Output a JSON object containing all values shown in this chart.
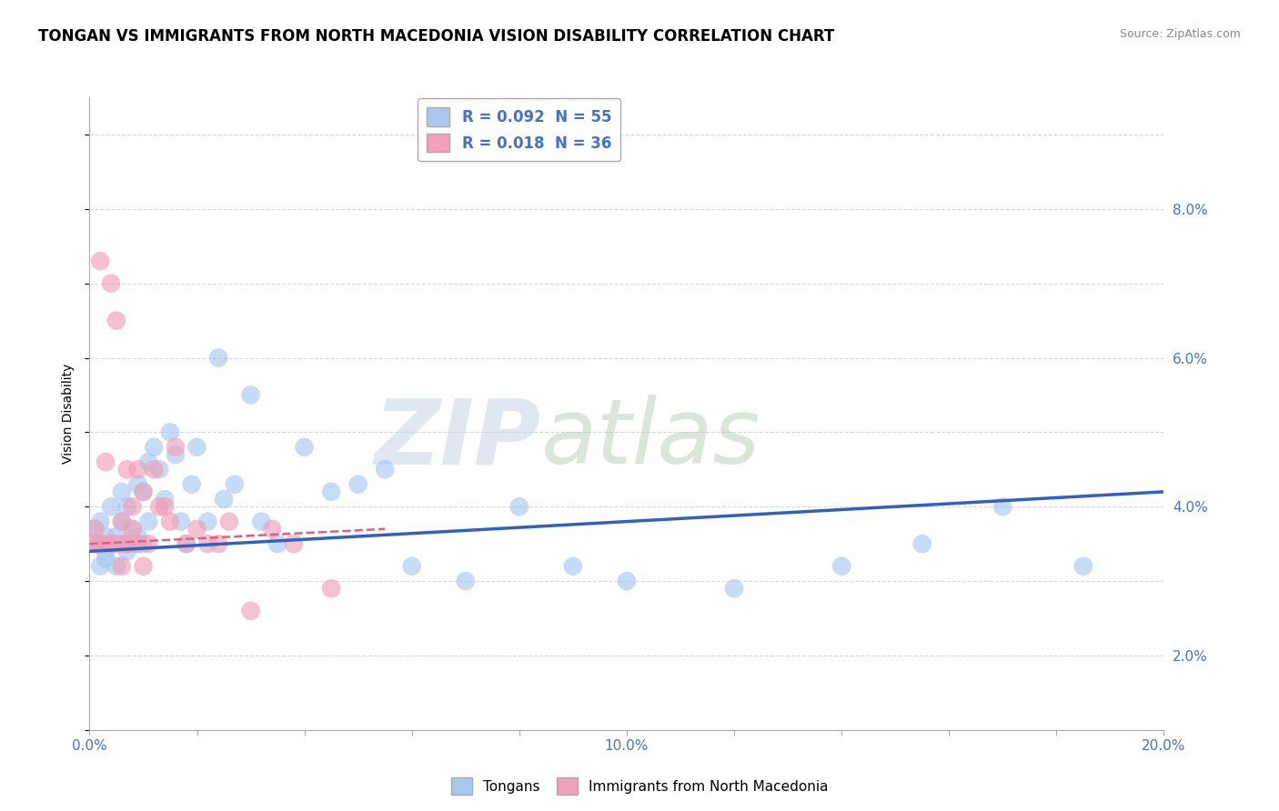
{
  "title": "TONGAN VS IMMIGRANTS FROM NORTH MACEDONIA VISION DISABILITY CORRELATION CHART",
  "source": "Source: ZipAtlas.com",
  "ylabel": "Vision Disability",
  "xlim": [
    0.0,
    0.2
  ],
  "ylim": [
    0.0,
    0.085
  ],
  "xticks": [
    0.0,
    0.02,
    0.04,
    0.06,
    0.08,
    0.1,
    0.12,
    0.14,
    0.16,
    0.18,
    0.2
  ],
  "xticklabels": [
    "0.0%",
    "",
    "",
    "",
    "",
    "10.0%",
    "",
    "",
    "",
    "",
    "20.0%"
  ],
  "yticks": [
    0.0,
    0.01,
    0.02,
    0.03,
    0.04,
    0.05,
    0.06,
    0.07,
    0.08
  ],
  "yticklabels": [
    "",
    "2.0%",
    "",
    "4.0%",
    "",
    "6.0%",
    "",
    "8.0%",
    ""
  ],
  "watermark_zip": "ZIP",
  "watermark_atlas": "atlas",
  "legend_entries": [
    {
      "label": "R = 0.092  N = 55",
      "color": "#a8c8f0"
    },
    {
      "label": "R = 0.018  N = 36",
      "color": "#f0a0b8"
    }
  ],
  "legend_labels_bottom": [
    "Tongans",
    "Immigrants from North Macedonia"
  ],
  "tongan_color": "#a8c8f0",
  "macedonia_color": "#f0a0b8",
  "tongan_line_color": "#3060c0",
  "macedonia_line_color": "#e06080",
  "tongan_x": [
    0.001,
    0.001,
    0.002,
    0.002,
    0.002,
    0.003,
    0.003,
    0.003,
    0.004,
    0.004,
    0.005,
    0.005,
    0.006,
    0.006,
    0.006,
    0.007,
    0.007,
    0.008,
    0.008,
    0.009,
    0.009,
    0.01,
    0.01,
    0.011,
    0.011,
    0.012,
    0.013,
    0.014,
    0.015,
    0.016,
    0.017,
    0.018,
    0.019,
    0.02,
    0.022,
    0.024,
    0.025,
    0.027,
    0.03,
    0.032,
    0.035,
    0.04,
    0.045,
    0.05,
    0.055,
    0.06,
    0.07,
    0.08,
    0.09,
    0.1,
    0.12,
    0.14,
    0.155,
    0.17,
    0.185
  ],
  "tongan_y": [
    0.027,
    0.025,
    0.025,
    0.028,
    0.022,
    0.026,
    0.023,
    0.024,
    0.025,
    0.03,
    0.026,
    0.022,
    0.025,
    0.028,
    0.032,
    0.024,
    0.03,
    0.025,
    0.027,
    0.026,
    0.033,
    0.025,
    0.032,
    0.028,
    0.036,
    0.038,
    0.035,
    0.031,
    0.04,
    0.037,
    0.028,
    0.025,
    0.033,
    0.038,
    0.028,
    0.05,
    0.031,
    0.033,
    0.045,
    0.028,
    0.025,
    0.038,
    0.032,
    0.033,
    0.035,
    0.022,
    0.02,
    0.03,
    0.022,
    0.02,
    0.019,
    0.022,
    0.025,
    0.03,
    0.022
  ],
  "macedonia_x": [
    0.001,
    0.001,
    0.002,
    0.002,
    0.003,
    0.003,
    0.004,
    0.004,
    0.005,
    0.005,
    0.006,
    0.006,
    0.007,
    0.007,
    0.007,
    0.008,
    0.008,
    0.009,
    0.009,
    0.01,
    0.01,
    0.011,
    0.012,
    0.013,
    0.014,
    0.015,
    0.016,
    0.018,
    0.02,
    0.022,
    0.024,
    0.026,
    0.03,
    0.034,
    0.038,
    0.045
  ],
  "macedonia_y": [
    0.027,
    0.025,
    0.063,
    0.025,
    0.025,
    0.036,
    0.025,
    0.06,
    0.025,
    0.055,
    0.022,
    0.028,
    0.025,
    0.035,
    0.025,
    0.027,
    0.03,
    0.025,
    0.035,
    0.022,
    0.032,
    0.025,
    0.035,
    0.03,
    0.03,
    0.028,
    0.038,
    0.025,
    0.027,
    0.025,
    0.025,
    0.028,
    0.016,
    0.027,
    0.025,
    0.019
  ],
  "tongan_trend_x": [
    0.0,
    0.2
  ],
  "tongan_trend_y": [
    0.024,
    0.032
  ],
  "mac_trend_x": [
    0.0,
    0.055
  ],
  "mac_trend_y": [
    0.025,
    0.027
  ],
  "grid_color": "#d8d8d8",
  "background_color": "#ffffff",
  "title_fontsize": 12,
  "axis_label_fontsize": 10,
  "tick_fontsize": 11,
  "right_ytick_color": "#4472c4"
}
